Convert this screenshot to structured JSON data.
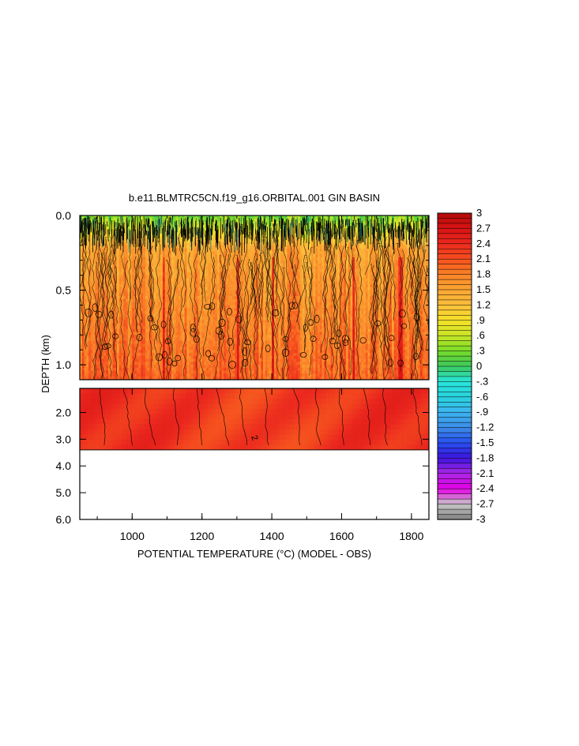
{
  "chart_data": {
    "type": "heatmap",
    "title": "b.e11.BLMTRC5CN.f19_g16.ORBITAL.001 GIN BASIN",
    "xlabel": "POTENTIAL TEMPERATURE (°C) (MODEL - OBS)",
    "ylabel": "DEPTH (km)",
    "xlim": [
      850,
      1850
    ],
    "x_ticks": [
      1000,
      1200,
      1400,
      1600,
      1800
    ],
    "x_tick_labels": [
      "1000",
      "1200",
      "1400",
      "1600",
      "1800"
    ],
    "upper_panel": {
      "ylim": [
        0.0,
        1.1
      ],
      "y_ticks": [
        0.0,
        0.5,
        1.0
      ],
      "y_tick_labels": [
        "0.0",
        "0.5",
        "1.0"
      ]
    },
    "lower_panel": {
      "ylim": [
        1.1,
        6.0
      ],
      "y_ticks": [
        2.0,
        3.0,
        4.0,
        5.0,
        6.0
      ],
      "y_tick_labels": [
        "2.0",
        "3.0",
        "4.0",
        "5.0",
        "6.0"
      ],
      "data_bottom_depth": 3.4,
      "contour_labels": [
        "2"
      ]
    },
    "colorbar": {
      "min": -3,
      "max": 3,
      "levels": 60,
      "tick_labels": [
        "3",
        "2.7",
        "2.4",
        "2.1",
        "1.8",
        "1.5",
        "1.2",
        ".9",
        ".6",
        ".3",
        "0",
        "-.3",
        "-.6",
        "-.9",
        "-1.2",
        "-1.5",
        "-1.8",
        "-2.1",
        "-2.4",
        "-2.7",
        "-3"
      ]
    },
    "field_description_values": {
      "surface_value": 0.3,
      "upper_mid_value": 1.5,
      "bottom_upper_value": 2.0,
      "deep_value": 2.1
    }
  }
}
